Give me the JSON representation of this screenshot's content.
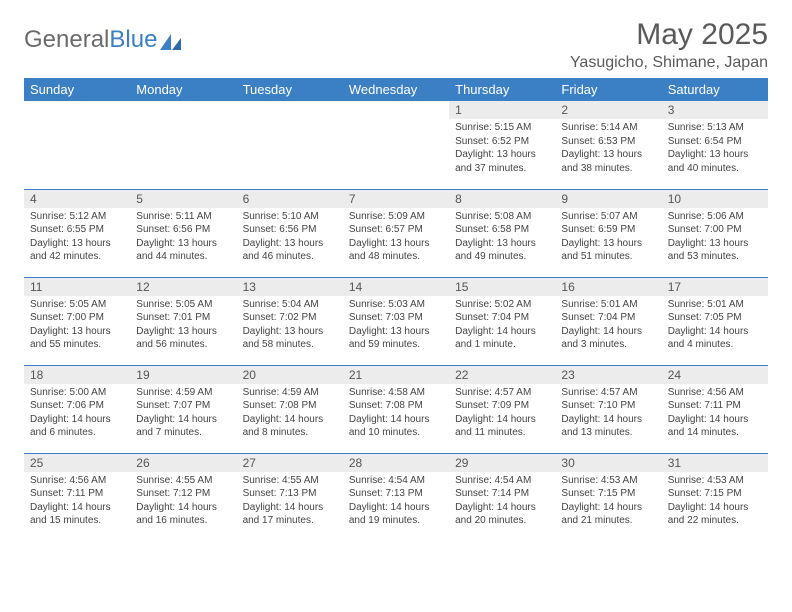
{
  "brand": {
    "part1": "General",
    "part2": "Blue"
  },
  "title": "May 2025",
  "location": "Yasugicho, Shimane, Japan",
  "colors": {
    "header_bg": "#3b7fc4",
    "header_text": "#ffffff",
    "daynum_bg": "#ececec",
    "text": "#444444",
    "rule": "#3b7fc4"
  },
  "weekdays": [
    "Sunday",
    "Monday",
    "Tuesday",
    "Wednesday",
    "Thursday",
    "Friday",
    "Saturday"
  ],
  "weeks": [
    [
      null,
      null,
      null,
      null,
      {
        "n": "1",
        "sr": "Sunrise: 5:15 AM",
        "ss": "Sunset: 6:52 PM",
        "dl": "Daylight: 13 hours and 37 minutes."
      },
      {
        "n": "2",
        "sr": "Sunrise: 5:14 AM",
        "ss": "Sunset: 6:53 PM",
        "dl": "Daylight: 13 hours and 38 minutes."
      },
      {
        "n": "3",
        "sr": "Sunrise: 5:13 AM",
        "ss": "Sunset: 6:54 PM",
        "dl": "Daylight: 13 hours and 40 minutes."
      }
    ],
    [
      {
        "n": "4",
        "sr": "Sunrise: 5:12 AM",
        "ss": "Sunset: 6:55 PM",
        "dl": "Daylight: 13 hours and 42 minutes."
      },
      {
        "n": "5",
        "sr": "Sunrise: 5:11 AM",
        "ss": "Sunset: 6:56 PM",
        "dl": "Daylight: 13 hours and 44 minutes."
      },
      {
        "n": "6",
        "sr": "Sunrise: 5:10 AM",
        "ss": "Sunset: 6:56 PM",
        "dl": "Daylight: 13 hours and 46 minutes."
      },
      {
        "n": "7",
        "sr": "Sunrise: 5:09 AM",
        "ss": "Sunset: 6:57 PM",
        "dl": "Daylight: 13 hours and 48 minutes."
      },
      {
        "n": "8",
        "sr": "Sunrise: 5:08 AM",
        "ss": "Sunset: 6:58 PM",
        "dl": "Daylight: 13 hours and 49 minutes."
      },
      {
        "n": "9",
        "sr": "Sunrise: 5:07 AM",
        "ss": "Sunset: 6:59 PM",
        "dl": "Daylight: 13 hours and 51 minutes."
      },
      {
        "n": "10",
        "sr": "Sunrise: 5:06 AM",
        "ss": "Sunset: 7:00 PM",
        "dl": "Daylight: 13 hours and 53 minutes."
      }
    ],
    [
      {
        "n": "11",
        "sr": "Sunrise: 5:05 AM",
        "ss": "Sunset: 7:00 PM",
        "dl": "Daylight: 13 hours and 55 minutes."
      },
      {
        "n": "12",
        "sr": "Sunrise: 5:05 AM",
        "ss": "Sunset: 7:01 PM",
        "dl": "Daylight: 13 hours and 56 minutes."
      },
      {
        "n": "13",
        "sr": "Sunrise: 5:04 AM",
        "ss": "Sunset: 7:02 PM",
        "dl": "Daylight: 13 hours and 58 minutes."
      },
      {
        "n": "14",
        "sr": "Sunrise: 5:03 AM",
        "ss": "Sunset: 7:03 PM",
        "dl": "Daylight: 13 hours and 59 minutes."
      },
      {
        "n": "15",
        "sr": "Sunrise: 5:02 AM",
        "ss": "Sunset: 7:04 PM",
        "dl": "Daylight: 14 hours and 1 minute."
      },
      {
        "n": "16",
        "sr": "Sunrise: 5:01 AM",
        "ss": "Sunset: 7:04 PM",
        "dl": "Daylight: 14 hours and 3 minutes."
      },
      {
        "n": "17",
        "sr": "Sunrise: 5:01 AM",
        "ss": "Sunset: 7:05 PM",
        "dl": "Daylight: 14 hours and 4 minutes."
      }
    ],
    [
      {
        "n": "18",
        "sr": "Sunrise: 5:00 AM",
        "ss": "Sunset: 7:06 PM",
        "dl": "Daylight: 14 hours and 6 minutes."
      },
      {
        "n": "19",
        "sr": "Sunrise: 4:59 AM",
        "ss": "Sunset: 7:07 PM",
        "dl": "Daylight: 14 hours and 7 minutes."
      },
      {
        "n": "20",
        "sr": "Sunrise: 4:59 AM",
        "ss": "Sunset: 7:08 PM",
        "dl": "Daylight: 14 hours and 8 minutes."
      },
      {
        "n": "21",
        "sr": "Sunrise: 4:58 AM",
        "ss": "Sunset: 7:08 PM",
        "dl": "Daylight: 14 hours and 10 minutes."
      },
      {
        "n": "22",
        "sr": "Sunrise: 4:57 AM",
        "ss": "Sunset: 7:09 PM",
        "dl": "Daylight: 14 hours and 11 minutes."
      },
      {
        "n": "23",
        "sr": "Sunrise: 4:57 AM",
        "ss": "Sunset: 7:10 PM",
        "dl": "Daylight: 14 hours and 13 minutes."
      },
      {
        "n": "24",
        "sr": "Sunrise: 4:56 AM",
        "ss": "Sunset: 7:11 PM",
        "dl": "Daylight: 14 hours and 14 minutes."
      }
    ],
    [
      {
        "n": "25",
        "sr": "Sunrise: 4:56 AM",
        "ss": "Sunset: 7:11 PM",
        "dl": "Daylight: 14 hours and 15 minutes."
      },
      {
        "n": "26",
        "sr": "Sunrise: 4:55 AM",
        "ss": "Sunset: 7:12 PM",
        "dl": "Daylight: 14 hours and 16 minutes."
      },
      {
        "n": "27",
        "sr": "Sunrise: 4:55 AM",
        "ss": "Sunset: 7:13 PM",
        "dl": "Daylight: 14 hours and 17 minutes."
      },
      {
        "n": "28",
        "sr": "Sunrise: 4:54 AM",
        "ss": "Sunset: 7:13 PM",
        "dl": "Daylight: 14 hours and 19 minutes."
      },
      {
        "n": "29",
        "sr": "Sunrise: 4:54 AM",
        "ss": "Sunset: 7:14 PM",
        "dl": "Daylight: 14 hours and 20 minutes."
      },
      {
        "n": "30",
        "sr": "Sunrise: 4:53 AM",
        "ss": "Sunset: 7:15 PM",
        "dl": "Daylight: 14 hours and 21 minutes."
      },
      {
        "n": "31",
        "sr": "Sunrise: 4:53 AM",
        "ss": "Sunset: 7:15 PM",
        "dl": "Daylight: 14 hours and 22 minutes."
      }
    ]
  ]
}
